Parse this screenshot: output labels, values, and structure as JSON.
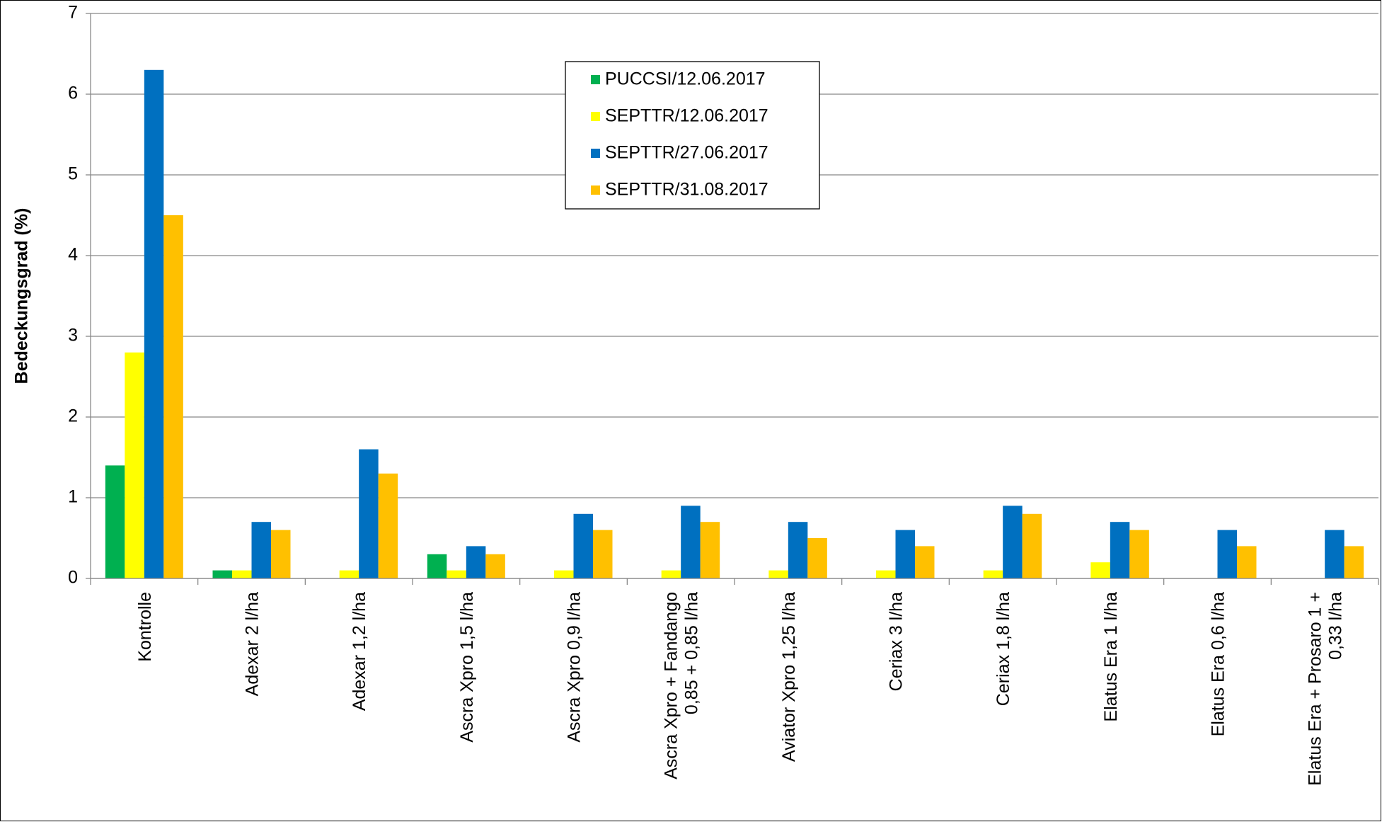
{
  "chart_data": {
    "type": "bar",
    "ylabel": "Bedeckungsgrad (%)",
    "categories": [
      "Kontrolle",
      "Adexar 2 l/ha",
      "Adexar 1,2 l/ha",
      "Ascra Xpro 1,5 l/ha",
      "Ascra Xpro 0,9 l/ha",
      "Ascra Xpro + Fandango 0,85 + 0,85 l/ha",
      "Aviator Xpro 1,25 l/ha",
      "Ceriax 3 l/ha",
      "Ceriax 1,8 l/ha",
      "Elatus Era 1 l/ha",
      "Elatus Era 0,6 l/ha",
      "Elatus Era + Prosaro 1 + 0,33 l/ha"
    ],
    "series": [
      {
        "name": "PUCCSI/12.06.2017",
        "color": "#00b050",
        "values": [
          1.4,
          0.1,
          0,
          0.3,
          0,
          0,
          0,
          0,
          0,
          0,
          0,
          0
        ]
      },
      {
        "name": "SEPTTR/12.06.2017",
        "color": "#ffff00",
        "values": [
          2.8,
          0.1,
          0.1,
          0.1,
          0.1,
          0.1,
          0.1,
          0.1,
          0.1,
          0.2,
          0,
          0
        ]
      },
      {
        "name": "SEPTTR/27.06.2017",
        "color": "#0070c0",
        "values": [
          6.3,
          0.7,
          1.6,
          0.4,
          0.8,
          0.9,
          0.7,
          0.6,
          0.9,
          0.7,
          0.6,
          0.6
        ]
      },
      {
        "name": "SEPTTR/31.08.2017",
        "color": "#ffc000",
        "values": [
          4.5,
          0.6,
          1.3,
          0.3,
          0.6,
          0.7,
          0.5,
          0.4,
          0.8,
          0.6,
          0.4,
          0.4
        ]
      }
    ],
    "ylim": [
      0,
      7
    ],
    "yticks": [
      0,
      1,
      2,
      3,
      4,
      5,
      6,
      7
    ],
    "grid": true,
    "legend": "top"
  }
}
